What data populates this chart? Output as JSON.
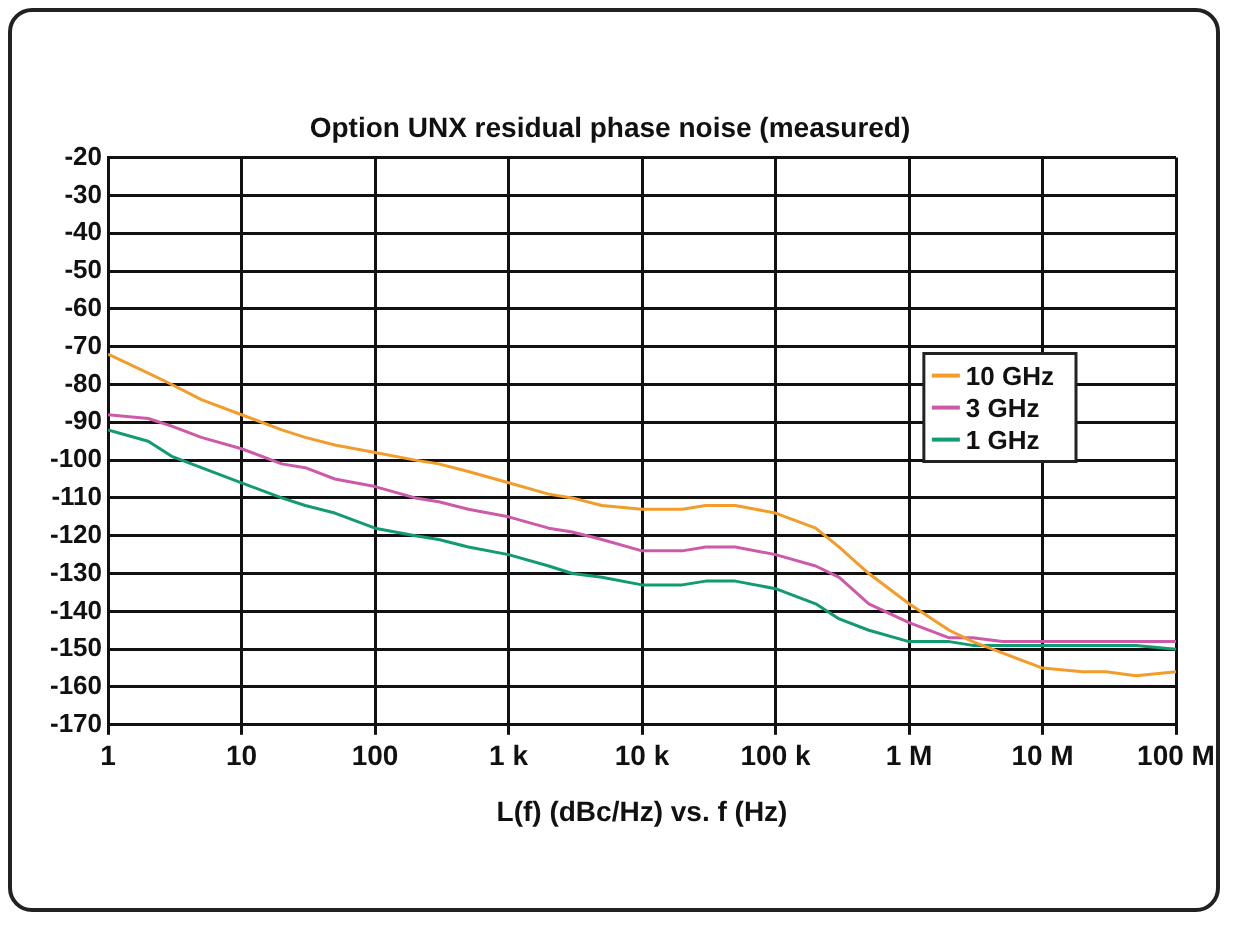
{
  "chart_data": {
    "type": "line",
    "title": "Option UNX residual phase noise (measured)",
    "xlabel": "L(f) (dBc/Hz) vs. f (Hz)",
    "x": [
      1,
      2,
      3,
      5,
      10,
      20,
      30,
      50,
      100,
      200,
      300,
      500,
      1000,
      2000,
      3000,
      5000,
      10000,
      20000,
      30000,
      50000,
      100000,
      200000,
      300000,
      500000,
      1000000,
      2000000,
      3000000,
      5000000,
      10000000,
      20000000,
      30000000,
      50000000,
      100000000
    ],
    "series": [
      {
        "name": "10 GHz",
        "color": "#f39c2a",
        "values": [
          -72,
          -77,
          -80,
          -84,
          -88,
          -92,
          -94,
          -96,
          -98,
          -100,
          -101,
          -103,
          -106,
          -109,
          -110,
          -112,
          -113,
          -113,
          -112,
          -112,
          -114,
          -118,
          -123,
          -130,
          -138,
          -145,
          -148,
          -151,
          -155,
          -156,
          -156,
          -157,
          -156
        ]
      },
      {
        "name": "3 GHz",
        "color": "#cc5aa8",
        "values": [
          -88,
          -89,
          -91,
          -94,
          -97,
          -101,
          -102,
          -105,
          -107,
          -110,
          -111,
          -113,
          -115,
          -118,
          -119,
          -121,
          -124,
          -124,
          -123,
          -123,
          -125,
          -128,
          -131,
          -138,
          -143,
          -147,
          -147,
          -148,
          -148,
          -148,
          -148,
          -148,
          -148
        ]
      },
      {
        "name": "1 GHz",
        "color": "#129a72",
        "values": [
          -92,
          -95,
          -99,
          -102,
          -106,
          -110,
          -112,
          -114,
          -118,
          -120,
          -121,
          -123,
          -125,
          -128,
          -130,
          -131,
          -133,
          -133,
          -132,
          -132,
          -134,
          -138,
          -142,
          -145,
          -148,
          -148,
          -149,
          -149,
          -149,
          -149,
          -149,
          -149,
          -150
        ]
      }
    ],
    "log": "x",
    "xlim": [
      1,
      100000000
    ],
    "xticks": [
      1,
      10,
      100,
      {
        "value": 1000,
        "label": "1 k"
      },
      {
        "value": 10000,
        "label": "10 k"
      },
      {
        "value": 100000,
        "label": "100 k"
      },
      {
        "value": 1000000,
        "label": "1 M"
      },
      {
        "value": 10000000,
        "label": "10 M"
      },
      {
        "value": 100000000,
        "label": "100 M"
      }
    ],
    "ylim": [
      -170,
      -20
    ],
    "yticks": [
      -20,
      -30,
      -40,
      -50,
      -60,
      -70,
      -80,
      -90,
      -100,
      -110,
      -120,
      -130,
      -140,
      -150,
      -160,
      -170
    ],
    "grid": true,
    "legend": "top right",
    "line_style": "solid"
  }
}
